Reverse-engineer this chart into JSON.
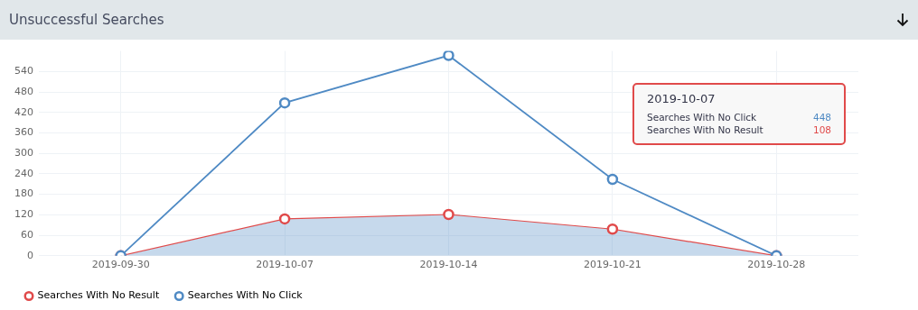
{
  "chart_data": {
    "type": "line",
    "title": "Unsuccessful Searches",
    "categories": [
      "2019-09-30",
      "2019-10-07",
      "2019-10-14",
      "2019-10-21",
      "2019-10-28"
    ],
    "series": [
      {
        "name": "Searches With No Result",
        "type": "area",
        "color": "#e04a4a",
        "values": [
          0,
          108,
          121,
          78,
          0
        ]
      },
      {
        "name": "Searches With No Click",
        "type": "line",
        "color": "#4f8ac4",
        "values": [
          0,
          448,
          587,
          224,
          0
        ]
      }
    ],
    "ylim": [
      0,
      600
    ],
    "yticks": [
      0,
      60,
      120,
      180,
      240,
      300,
      360,
      420,
      480,
      540
    ],
    "grid": true,
    "legend": "bottom left",
    "marker": "circle",
    "annotations": [
      "2019-10-07",
      "Searches With No Click",
      "448",
      "Searches With No Result",
      "108"
    ]
  }
}
